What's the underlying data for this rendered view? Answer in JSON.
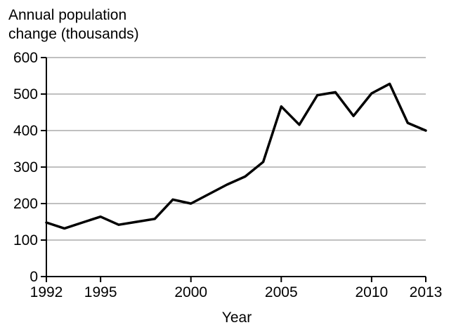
{
  "chart_data": {
    "type": "line",
    "title": "",
    "ylabel": [
      "Annual population",
      "change (thousands)"
    ],
    "xlabel": "Year",
    "xlim": [
      1992,
      2013
    ],
    "ylim": [
      0,
      600
    ],
    "x_ticks": [
      1992,
      1995,
      2000,
      2005,
      2010,
      2013
    ],
    "y_ticks": [
      0,
      100,
      200,
      300,
      400,
      500,
      600
    ],
    "grid": "horizontal",
    "legend": "none",
    "colors": {
      "line": "#000000",
      "grid": "#808080",
      "axis": "#000000"
    },
    "series": [
      {
        "x": [
          1992,
          1993,
          1994,
          1995,
          1996,
          1997,
          1998,
          1999,
          2000,
          2001,
          2002,
          2003,
          2004,
          2005,
          2006,
          2007,
          2008,
          2009,
          2010,
          2011,
          2012,
          2013
        ],
        "values": [
          148,
          132,
          148,
          164,
          142,
          150,
          158,
          211,
          200,
          226,
          252,
          274,
          314,
          466,
          416,
          497,
          505,
          440,
          502,
          528,
          421,
          400
        ]
      }
    ]
  }
}
